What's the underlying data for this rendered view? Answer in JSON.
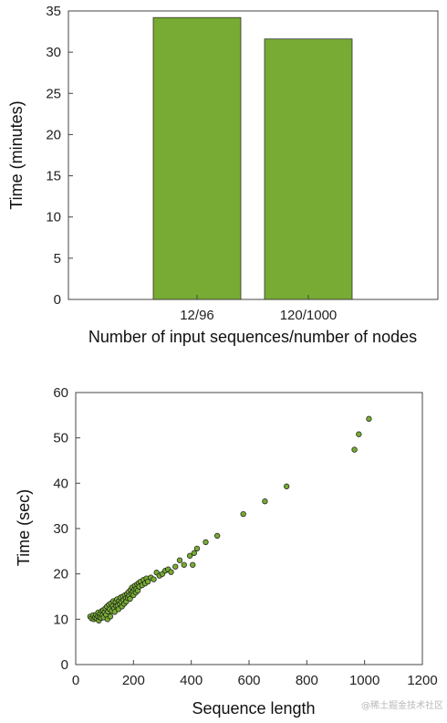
{
  "chart_data": [
    {
      "type": "bar",
      "categories": [
        "12/96",
        "120/1000"
      ],
      "values": [
        34.2,
        31.6
      ],
      "xlabel": "Number of input sequences/number of nodes",
      "ylabel": "Time (minutes)",
      "ylim": [
        0,
        35
      ],
      "yticks": [
        0,
        5,
        10,
        15,
        20,
        25,
        30,
        35
      ],
      "grid": false,
      "bar_color": "#77ab33"
    },
    {
      "type": "scatter",
      "xlabel": "Sequence length",
      "ylabel": "Time (sec)",
      "xlim": [
        0,
        1200
      ],
      "ylim": [
        0,
        60
      ],
      "xticks": [
        0,
        200,
        400,
        600,
        800,
        1000,
        1200
      ],
      "yticks": [
        0,
        10,
        20,
        30,
        40,
        50,
        60
      ],
      "grid": false,
      "marker_color": "#77ab33",
      "points": [
        [
          50,
          10.6
        ],
        [
          55,
          10.2
        ],
        [
          60,
          10.9
        ],
        [
          62,
          10.0
        ],
        [
          66,
          10.4
        ],
        [
          70,
          11.0
        ],
        [
          72,
          10.2
        ],
        [
          76,
          10.7
        ],
        [
          78,
          11.5
        ],
        [
          80,
          9.7
        ],
        [
          82,
          10.5
        ],
        [
          85,
          11.2
        ],
        [
          88,
          10.3
        ],
        [
          90,
          11.8
        ],
        [
          93,
          10.9
        ],
        [
          95,
          12.0
        ],
        [
          97,
          10.4
        ],
        [
          100,
          11.5
        ],
        [
          103,
          12.4
        ],
        [
          105,
          11.0
        ],
        [
          108,
          12.8
        ],
        [
          110,
          10.0
        ],
        [
          112,
          11.7
        ],
        [
          115,
          13.2
        ],
        [
          118,
          12.2
        ],
        [
          120,
          10.6
        ],
        [
          122,
          13.5
        ],
        [
          125,
          11.8
        ],
        [
          128,
          12.9
        ],
        [
          130,
          14.0
        ],
        [
          133,
          12.4
        ],
        [
          135,
          11.6
        ],
        [
          138,
          13.8
        ],
        [
          140,
          12.9
        ],
        [
          143,
          14.4
        ],
        [
          145,
          13.0
        ],
        [
          148,
          12.2
        ],
        [
          150,
          14.0
        ],
        [
          153,
          13.4
        ],
        [
          155,
          14.8
        ],
        [
          158,
          13.8
        ],
        [
          160,
          12.8
        ],
        [
          163,
          15.0
        ],
        [
          165,
          14.2
        ],
        [
          168,
          13.4
        ],
        [
          170,
          15.3
        ],
        [
          173,
          14.6
        ],
        [
          175,
          13.9
        ],
        [
          178,
          15.6
        ],
        [
          180,
          14.7
        ],
        [
          183,
          16.0
        ],
        [
          185,
          15.2
        ],
        [
          188,
          14.5
        ],
        [
          190,
          16.5
        ],
        [
          193,
          15.6
        ],
        [
          195,
          17.0
        ],
        [
          198,
          16.1
        ],
        [
          200,
          15.3
        ],
        [
          203,
          16.6
        ],
        [
          205,
          17.4
        ],
        [
          208,
          15.9
        ],
        [
          210,
          16.7
        ],
        [
          213,
          17.7
        ],
        [
          215,
          16.3
        ],
        [
          218,
          18.0
        ],
        [
          220,
          17.2
        ],
        [
          225,
          18.3
        ],
        [
          230,
          17.5
        ],
        [
          235,
          18.7
        ],
        [
          240,
          17.9
        ],
        [
          245,
          19.0
        ],
        [
          250,
          18.3
        ],
        [
          260,
          19.2
        ],
        [
          270,
          18.8
        ],
        [
          280,
          20.3
        ],
        [
          290,
          19.6
        ],
        [
          300,
          20.0
        ],
        [
          310,
          20.7
        ],
        [
          320,
          21.0
        ],
        [
          330,
          20.4
        ],
        [
          345,
          21.6
        ],
        [
          360,
          23.0
        ],
        [
          375,
          22.0
        ],
        [
          395,
          24.0
        ],
        [
          405,
          22.0
        ],
        [
          410,
          24.6
        ],
        [
          420,
          25.6
        ],
        [
          450,
          27.0
        ],
        [
          490,
          28.4
        ],
        [
          580,
          33.2
        ],
        [
          655,
          36.0
        ],
        [
          730,
          39.3
        ],
        [
          965,
          47.4
        ],
        [
          980,
          50.8
        ],
        [
          1015,
          54.2
        ]
      ]
    }
  ],
  "watermark": "@稀土掘金技术社区"
}
